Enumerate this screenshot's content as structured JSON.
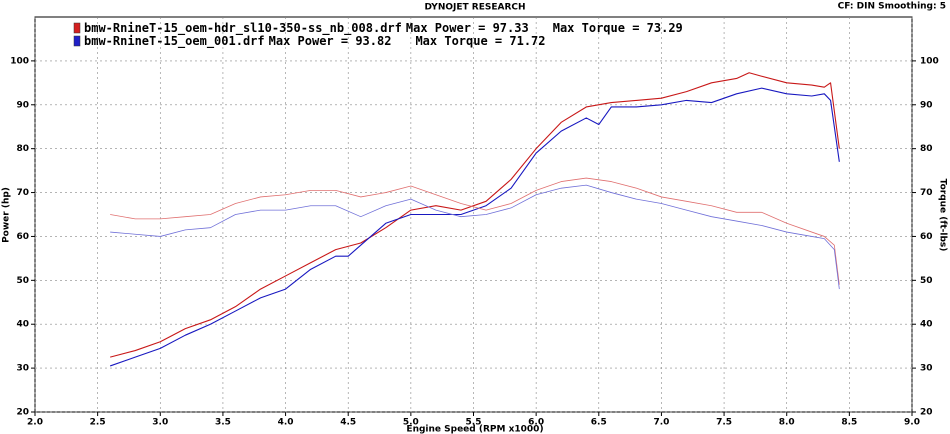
{
  "chart_data": {
    "type": "line",
    "title": "DYNOJET RESEARCH",
    "subtitle": "CF: DIN  Smoothing: 5",
    "xlabel": "Engine Speed (RPM x1000)",
    "ylabel": "Power (hp)",
    "y2label": "Torque (ft-lbs)",
    "legend": [
      {
        "file": "bmw-RnineT-15_oem-hdr_sl10-350-ss_nb_008.drf",
        "power": "Max Power = 97.33",
        "torque": "Max Torque = 73.29",
        "color": "#d42020"
      },
      {
        "file": "bmw-RnineT-15_oem_001.drf",
        "power": "Max Power = 93.82",
        "torque": "Max Torque = 71.72",
        "color": "#2020c8"
      }
    ],
    "xlim": [
      2,
      9
    ],
    "xticks": [
      {
        "value": 2,
        "label": "2.0"
      },
      2.5,
      {
        "value": 3,
        "label": "3.0"
      },
      3.5,
      {
        "value": 4,
        "label": "4.0"
      },
      4.5,
      {
        "value": 5,
        "label": "5.0"
      },
      5.5,
      {
        "value": 6,
        "label": "6.0"
      },
      6.5,
      {
        "value": 7,
        "label": "7.0"
      },
      7.5,
      {
        "value": 8,
        "label": "8.0"
      },
      8.5,
      {
        "value": 9,
        "label": "9.0"
      }
    ],
    "ylim": [
      20,
      110
    ],
    "yticks": [
      20,
      30,
      40,
      50,
      60,
      70,
      80,
      90,
      100
    ],
    "y2lim": [
      20,
      110
    ],
    "y2ticks": [
      20,
      30,
      40,
      50,
      60,
      70,
      80,
      90,
      100
    ],
    "grid": true,
    "series": [
      {
        "color": "#c81818",
        "width": 1.1,
        "x": [
          2.6,
          2.8,
          3.0,
          3.2,
          3.4,
          3.6,
          3.8,
          4.0,
          4.2,
          4.4,
          4.6,
          4.8,
          5.0,
          5.2,
          5.4,
          5.6,
          5.8,
          6.0,
          6.2,
          6.4,
          6.6,
          6.8,
          7.0,
          7.2,
          7.4,
          7.6,
          7.7,
          7.8,
          8.0,
          8.2,
          8.3,
          8.35,
          8.42
        ],
        "values": [
          32.5,
          34,
          36,
          39,
          41,
          44,
          48,
          51,
          54,
          57,
          58.5,
          62,
          66,
          67,
          66,
          68,
          73,
          80,
          86,
          89.5,
          90.5,
          91,
          91.5,
          93,
          95,
          96,
          97.3,
          96.5,
          95,
          94.5,
          94,
          95,
          80
        ]
      },
      {
        "color": "#1818c0",
        "width": 1.1,
        "x": [
          2.6,
          2.8,
          3.0,
          3.2,
          3.4,
          3.6,
          3.8,
          4.0,
          4.2,
          4.4,
          4.5,
          4.6,
          4.8,
          5.0,
          5.2,
          5.4,
          5.6,
          5.8,
          6.0,
          6.2,
          6.4,
          6.5,
          6.6,
          6.8,
          7.0,
          7.2,
          7.4,
          7.6,
          7.8,
          8.0,
          8.2,
          8.3,
          8.35,
          8.42
        ],
        "values": [
          30.5,
          32.5,
          34.5,
          37.5,
          40,
          43,
          46,
          48,
          52.5,
          55.5,
          55.5,
          58,
          63,
          65,
          65,
          65,
          67,
          71,
          79,
          84,
          87,
          85.5,
          89.5,
          89.5,
          90,
          91,
          90.5,
          92.5,
          93.8,
          92.5,
          92,
          92.5,
          91,
          77
        ]
      },
      {
        "color": "#e07070",
        "width": 0.8,
        "axis": "y2",
        "x": [
          2.6,
          2.8,
          3.0,
          3.2,
          3.4,
          3.6,
          3.8,
          4.0,
          4.2,
          4.4,
          4.6,
          4.8,
          5.0,
          5.2,
          5.4,
          5.6,
          5.8,
          6.0,
          6.2,
          6.4,
          6.6,
          6.8,
          7.0,
          7.2,
          7.4,
          7.6,
          7.8,
          8.0,
          8.2,
          8.3,
          8.38,
          8.42
        ],
        "values": [
          65,
          64,
          64,
          64.5,
          65,
          67.5,
          69,
          69.5,
          70.5,
          70.5,
          69,
          70,
          71.5,
          69.5,
          67.5,
          66,
          67.5,
          70.5,
          72.5,
          73.3,
          72.5,
          71,
          69,
          68,
          67,
          65.5,
          65.5,
          63,
          61,
          60,
          58,
          49
        ]
      },
      {
        "color": "#7070d8",
        "width": 0.8,
        "axis": "y2",
        "x": [
          2.6,
          2.8,
          3.0,
          3.2,
          3.4,
          3.6,
          3.8,
          4.0,
          4.2,
          4.4,
          4.6,
          4.8,
          5.0,
          5.2,
          5.4,
          5.6,
          5.8,
          6.0,
          6.2,
          6.4,
          6.6,
          6.8,
          7.0,
          7.2,
          7.4,
          7.6,
          7.8,
          8.0,
          8.2,
          8.3,
          8.38,
          8.42
        ],
        "values": [
          61,
          60.5,
          60,
          61.5,
          62,
          65,
          66,
          66,
          67,
          67,
          64.5,
          67,
          68.5,
          66,
          64.5,
          65,
          66.5,
          69.5,
          71,
          71.7,
          70,
          68.5,
          67.5,
          66,
          64.5,
          63.5,
          62.5,
          61,
          60,
          59.5,
          57,
          48
        ]
      }
    ]
  }
}
